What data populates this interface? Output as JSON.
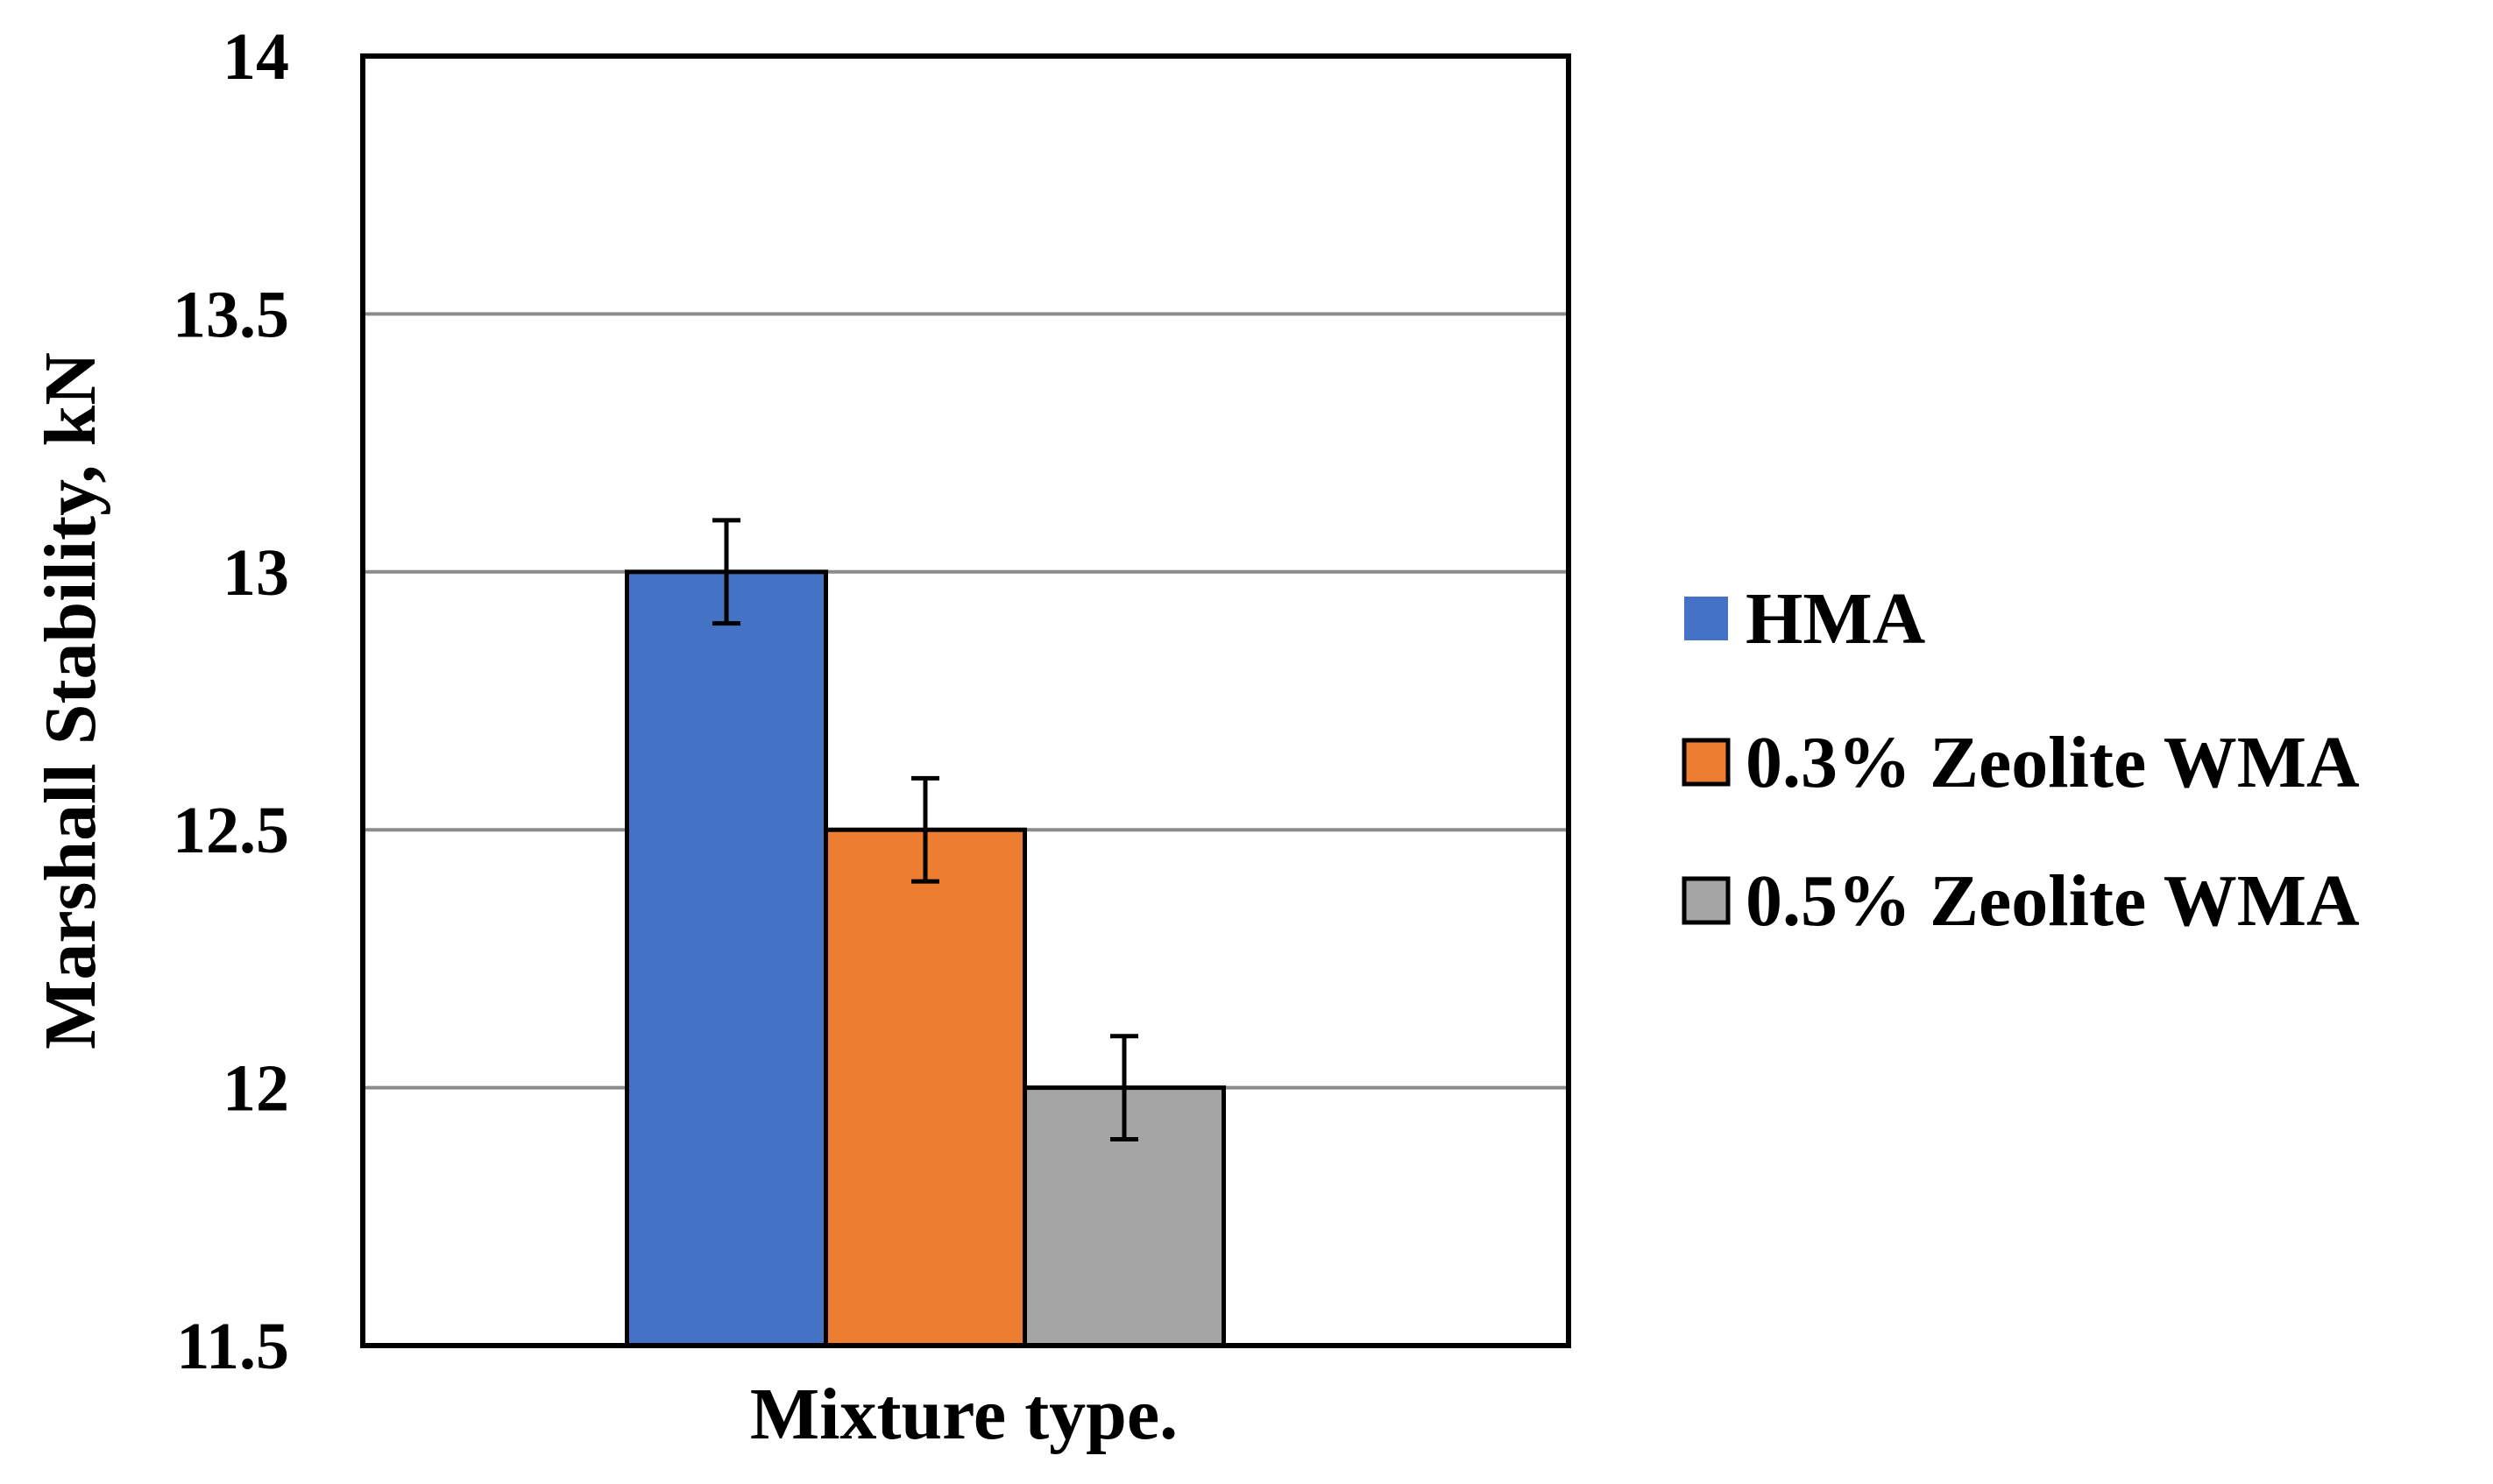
{
  "chart_data": {
    "type": "bar",
    "title": "",
    "xlabel": "Mixture type.",
    "ylabel": "Marshall Stability, kN",
    "categories": [
      "Mixture type."
    ],
    "ylim": [
      11.5,
      14
    ],
    "yticks": [
      11.5,
      12,
      12.5,
      13,
      13.5,
      14
    ],
    "ytick_labels": [
      "11.5",
      "12",
      "12.5",
      "13",
      "13.5",
      "14"
    ],
    "grid": true,
    "legend_position": "right",
    "series": [
      {
        "name": "HMA",
        "values": [
          13.0
        ],
        "error": [
          0.1
        ],
        "color": "#4472C4"
      },
      {
        "name": "0.3% Zeolite WMA",
        "values": [
          12.5
        ],
        "error": [
          0.1
        ],
        "color": "#ED7D31"
      },
      {
        "name": "0.5% Zeolite WMA",
        "values": [
          12.0
        ],
        "error": [
          0.1
        ],
        "color": "#A5A5A5"
      }
    ]
  }
}
